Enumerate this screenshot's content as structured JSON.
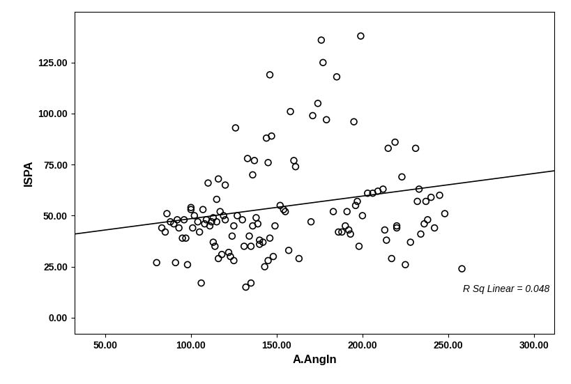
{
  "chart_data": {
    "type": "scatter",
    "x_label": "A.AngIn",
    "y_label": "ISPA",
    "annotations": [
      "R Sq Linear = 0.048"
    ],
    "xlim": [
      32,
      312
    ],
    "ylim": [
      -8,
      150
    ],
    "xticks": [
      {
        "value": 50,
        "label": "50.00"
      },
      {
        "value": 100,
        "label": "100.00"
      },
      {
        "value": 150,
        "label": "150.00"
      },
      {
        "value": 200,
        "label": "200.00"
      },
      {
        "value": 250,
        "label": "250.00"
      },
      {
        "value": 300,
        "label": "300.00"
      }
    ],
    "yticks": [
      {
        "value": 0,
        "label": "0.00"
      },
      {
        "value": 25,
        "label": "25.00"
      },
      {
        "value": 50,
        "label": "50.00"
      },
      {
        "value": 75,
        "label": "75.00"
      },
      {
        "value": 100,
        "label": "100.00"
      },
      {
        "value": 125,
        "label": "125.00"
      }
    ],
    "grid": false,
    "series": [
      {
        "type": "scatter",
        "marker": "circle",
        "color": "#000000",
        "x": [
          80,
          83,
          85,
          86,
          88,
          90,
          91,
          92,
          93,
          95,
          96,
          97,
          98,
          100,
          100,
          101,
          102,
          104,
          105,
          106,
          107,
          108,
          109,
          110,
          111,
          112,
          113,
          113,
          114,
          115,
          115,
          116,
          116,
          117,
          118,
          119,
          120,
          120,
          122,
          123,
          124,
          125,
          125,
          126,
          127,
          130,
          131,
          132,
          133,
          134,
          135,
          135,
          136,
          136,
          137,
          138,
          139,
          140,
          140,
          142,
          143,
          144,
          145,
          145,
          146,
          146,
          147,
          148,
          149,
          152,
          154,
          155,
          157,
          158,
          160,
          161,
          163,
          170,
          171,
          174,
          176,
          177,
          179,
          183,
          185,
          186,
          188,
          190,
          191,
          192,
          193,
          195,
          196,
          197,
          198,
          199,
          200,
          203,
          206,
          209,
          212,
          213,
          214,
          215,
          217,
          219,
          220,
          220,
          223,
          225,
          228,
          231,
          232,
          233,
          234,
          236,
          237,
          238,
          240,
          242,
          245,
          248,
          258
        ],
        "values": [
          27,
          44,
          42,
          51,
          47,
          46,
          27,
          48,
          44,
          39,
          48,
          39,
          26,
          53,
          54,
          44,
          50,
          47,
          42,
          17,
          53,
          46,
          48,
          66,
          45,
          47,
          37,
          49,
          35,
          58,
          47,
          29,
          68,
          52,
          31,
          50,
          48,
          65,
          32,
          30,
          40,
          45,
          28,
          93,
          50,
          48,
          35,
          15,
          78,
          40,
          17,
          35,
          45,
          70,
          77,
          49,
          46,
          36,
          38,
          37,
          25,
          88,
          76,
          28,
          119,
          39,
          89,
          30,
          45,
          55,
          53,
          52,
          33,
          101,
          77,
          74,
          29,
          47,
          99,
          105,
          136,
          125,
          97,
          52,
          118,
          42,
          42,
          45,
          52,
          43,
          41,
          96,
          55,
          57,
          35,
          138,
          50,
          61,
          61,
          62,
          63,
          43,
          38,
          83,
          29,
          86,
          45,
          44,
          69,
          26,
          37,
          83,
          57,
          63,
          41,
          46,
          57,
          48,
          59,
          44,
          60,
          51,
          24
        ]
      },
      {
        "type": "line",
        "line_style": "solid",
        "color": "#000000",
        "x": [
          32,
          312
        ],
        "values": [
          41,
          72
        ]
      }
    ]
  }
}
